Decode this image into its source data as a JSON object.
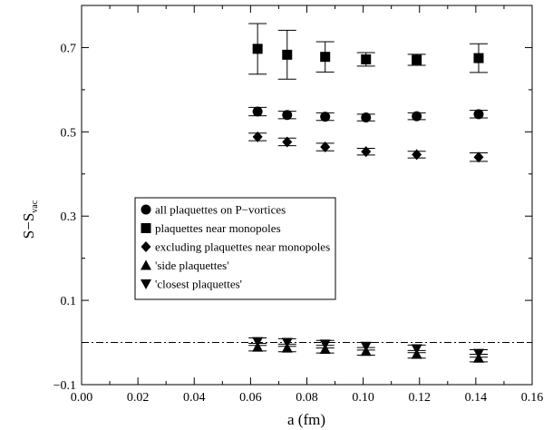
{
  "chart_data": {
    "type": "scatter",
    "title": "",
    "xlabel": "a (fm)",
    "ylabel_main": "S−S",
    "ylabel_sub": "vac",
    "xlim": [
      0.0,
      0.16
    ],
    "ylim": [
      -0.1,
      0.8
    ],
    "xticks": [
      0.0,
      0.02,
      0.04,
      0.06,
      0.08,
      0.1,
      0.12,
      0.14,
      0.16
    ],
    "xtick_labels": [
      "0.00",
      "0.02",
      "0.04",
      "0.06",
      "0.08",
      "0.10",
      "0.12",
      "0.14",
      "0.16"
    ],
    "yticks": [
      -0.1,
      0.1,
      0.3,
      0.5,
      0.7
    ],
    "ytick_labels": [
      "−0.1",
      "0.1",
      "0.3",
      "0.5",
      "0.7"
    ],
    "minor_xticks": [
      0.01,
      0.03,
      0.05,
      0.07,
      0.09,
      0.11,
      0.13,
      0.15
    ],
    "minor_yticks": [
      0.0,
      0.2,
      0.4,
      0.6,
      0.8
    ],
    "grid": false,
    "reference_line": {
      "y": 0.0,
      "style": "dash-dot"
    },
    "legend_position": "center-left",
    "series": [
      {
        "name": "all plaquettes on P−vortices",
        "marker": "circle",
        "x": [
          0.0625,
          0.073,
          0.0865,
          0.101,
          0.119,
          0.141
        ],
        "y": [
          0.548,
          0.54,
          0.536,
          0.534,
          0.537,
          0.542
        ],
        "err": [
          0.01,
          0.009,
          0.009,
          0.008,
          0.008,
          0.009
        ]
      },
      {
        "name": "plaquettes near monopoles",
        "marker": "square",
        "x": [
          0.0625,
          0.073,
          0.0865,
          0.101,
          0.119,
          0.141
        ],
        "y": [
          0.697,
          0.683,
          0.678,
          0.672,
          0.671,
          0.675
        ],
        "err": [
          0.06,
          0.058,
          0.036,
          0.016,
          0.013,
          0.034
        ]
      },
      {
        "name": "excluding plaquettes near monopoles",
        "marker": "diamond",
        "x": [
          0.0625,
          0.073,
          0.0865,
          0.101,
          0.119,
          0.141
        ],
        "y": [
          0.488,
          0.476,
          0.464,
          0.453,
          0.446,
          0.44
        ],
        "err": [
          0.009,
          0.009,
          0.009,
          0.008,
          0.008,
          0.01
        ]
      },
      {
        "name": "'side plaquettes'",
        "marker": "triangle-up",
        "x": [
          0.0625,
          0.073,
          0.0865,
          0.101,
          0.119,
          0.141
        ],
        "y": [
          -0.011,
          -0.013,
          -0.016,
          -0.021,
          -0.028,
          -0.037
        ],
        "err": [
          0.009,
          0.009,
          0.009,
          0.009,
          0.009,
          0.009
        ]
      },
      {
        "name": "'closest plaquettes'",
        "marker": "triangle-down",
        "x": [
          0.0625,
          0.073,
          0.0865,
          0.101,
          0.119,
          0.141
        ],
        "y": [
          0.002,
          0.0,
          -0.004,
          -0.009,
          -0.015,
          -0.026
        ],
        "err": [
          0.009,
          0.009,
          0.009,
          0.009,
          0.009,
          0.009
        ]
      }
    ]
  }
}
